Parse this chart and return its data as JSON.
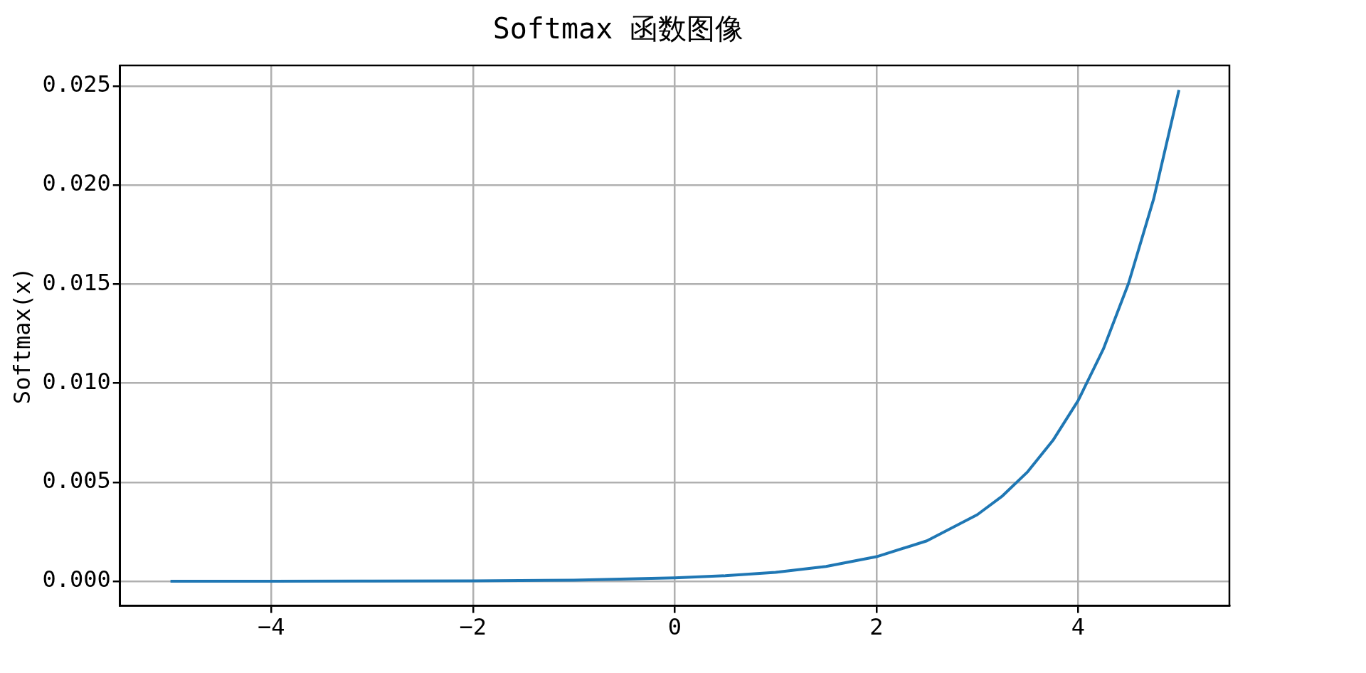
{
  "chart_data": {
    "type": "line",
    "title": "Softmax 函数图像",
    "ylabel": "Softmax(x)",
    "x": [
      -5,
      -4,
      -3,
      -2,
      -1,
      0,
      0.5,
      1,
      1.5,
      2,
      2.5,
      3,
      3.25,
      3.5,
      3.75,
      4,
      4.25,
      4.5,
      4.75,
      5
    ],
    "series": [
      {
        "color": "#1f77b4",
        "values": [
          0.0,
          0.0,
          1e-05,
          2e-05,
          6e-05,
          0.00017,
          0.00028,
          0.00045,
          0.00075,
          0.00124,
          0.00204,
          0.00336,
          0.00431,
          0.00553,
          0.00711,
          0.00912,
          0.01172,
          0.01504,
          0.01932,
          0.0248
        ]
      }
    ],
    "xlim": [
      -5.5,
      5.5
    ],
    "xticks": [
      -4,
      -2,
      0,
      2,
      4
    ],
    "ylim": [
      -0.00124,
      0.02604
    ],
    "yticks": [
      {
        "value": 0,
        "label": "0.000"
      },
      {
        "value": 0.005,
        "label": "0.005"
      },
      {
        "value": 0.01,
        "label": "0.010"
      },
      {
        "value": 0.015,
        "label": "0.015"
      },
      {
        "value": 0.02,
        "label": "0.020"
      },
      {
        "value": 0.025,
        "label": "0.025"
      }
    ],
    "grid": true,
    "legend": false,
    "marker": "none",
    "line_style": "solid"
  }
}
